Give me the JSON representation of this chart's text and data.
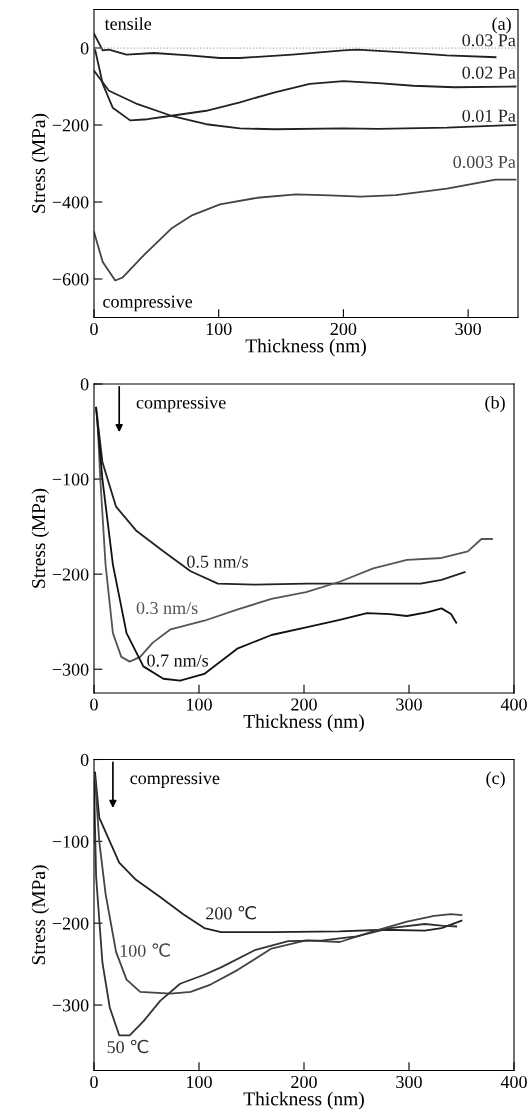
{
  "chart_data": [
    {
      "type": "line",
      "xlabel": "Thickness (nm)",
      "ylabel": "Stress (MPa)",
      "xlim": [
        0,
        340
      ],
      "ylim": [
        -700,
        100
      ],
      "xticks": [
        0,
        100,
        200,
        300
      ],
      "yticks": [
        0,
        {
          "value": -200,
          "label": "−200"
        },
        {
          "value": -400,
          "label": "−400"
        },
        {
          "value": -600,
          "label": "−600"
        }
      ],
      "grid": false,
      "legend": false,
      "line_style": "solid",
      "marker": "none",
      "annotations": [
        "tensile",
        "compressive",
        "(a)"
      ],
      "ref_lines": [
        {
          "axis": "y",
          "value": 0,
          "color": "#aaaaaa",
          "line_style": "dotted"
        }
      ],
      "series": [
        {
          "name": "0.03 Pa",
          "color": "#222222",
          "x": [
            0,
            7,
            12,
            26,
            48,
            76,
            101,
            117,
            159,
            200,
            211,
            242,
            283,
            322
          ],
          "values": [
            37,
            -6,
            -4,
            -17,
            -13,
            -19,
            -26,
            -26,
            -17,
            -6,
            -4,
            -10,
            -19,
            -24
          ]
        },
        {
          "name": "0.02 Pa",
          "color": "#222222",
          "x": [
            1,
            7,
            15,
            29,
            43,
            62,
            90,
            117,
            145,
            173,
            200,
            228,
            256,
            289,
            338
          ],
          "values": [
            -6,
            -93,
            -155,
            -188,
            -185,
            -176,
            -163,
            -141,
            -115,
            -93,
            -86,
            -91,
            -98,
            -102,
            -100
          ]
        },
        {
          "name": "0.01 Pa",
          "color": "#222222",
          "x": [
            0,
            12,
            35,
            62,
            90,
            117,
            145,
            200,
            228,
            283,
            338
          ],
          "values": [
            -59,
            -111,
            -146,
            -176,
            -198,
            -209,
            -211,
            -209,
            -210,
            -207,
            -200
          ]
        },
        {
          "name": "0.003 Pa",
          "color": "#444444",
          "x": [
            0,
            7,
            17,
            23,
            40,
            62,
            79,
            101,
            131,
            162,
            189,
            214,
            242,
            283,
            322,
            338
          ],
          "values": [
            -478,
            -556,
            -604,
            -596,
            -538,
            -469,
            -434,
            -406,
            -389,
            -380,
            -383,
            -386,
            -382,
            -365,
            -342,
            -342
          ]
        }
      ]
    },
    {
      "type": "line",
      "xlabel": "Thickness (nm)",
      "ylabel": "Stress (MPa)",
      "xlim": [
        0,
        400
      ],
      "ylim": [
        -325,
        0
      ],
      "xticks": [
        0,
        100,
        200,
        300,
        400
      ],
      "yticks": [
        0,
        {
          "value": -100,
          "label": "−100"
        },
        {
          "value": -200,
          "label": "−200"
        },
        {
          "value": -300,
          "label": "−300"
        }
      ],
      "grid": false,
      "legend": false,
      "line_style": "solid",
      "marker": "none",
      "annotations": [
        "compressive",
        "(b)"
      ],
      "series": [
        {
          "name": "0.5 nm/s",
          "color": "#222222",
          "x": [
            2,
            8,
            21,
            40,
            66,
            92,
            118,
            153,
            202,
            250,
            311,
            331,
            353
          ],
          "values": [
            -25,
            -82,
            -129,
            -154,
            -176,
            -197,
            -210,
            -211,
            -210,
            -210,
            -210,
            -206,
            -198
          ]
        },
        {
          "name": "0.3 nm/s",
          "color": "#555555",
          "x": [
            3,
            6,
            11,
            18,
            26,
            34,
            44,
            56,
            73,
            105,
            137,
            169,
            202,
            234,
            266,
            298,
            331,
            356,
            369,
            379
          ],
          "values": [
            -32,
            -100,
            -190,
            -262,
            -287,
            -292,
            -287,
            -272,
            -258,
            -249,
            -237,
            -226,
            -219,
            -208,
            -194,
            -185,
            -183,
            -176,
            -163,
            -163
          ]
        },
        {
          "name": "0.7 nm/s",
          "color": "#111111",
          "x": [
            2,
            8,
            18,
            31,
            47,
            66,
            82,
            105,
            137,
            169,
            202,
            234,
            260,
            282,
            298,
            318,
            331,
            340,
            345
          ],
          "values": [
            -25,
            -100,
            -190,
            -262,
            -297,
            -310,
            -312,
            -305,
            -278,
            -264,
            -256,
            -248,
            -241,
            -242,
            -244,
            -240,
            -236,
            -242,
            -251
          ]
        }
      ]
    },
    {
      "type": "line",
      "xlabel": "Thickness (nm)",
      "ylabel": "Stress (MPa)",
      "xlim": [
        0,
        400
      ],
      "ylim": [
        -380,
        0
      ],
      "xticks": [
        0,
        100,
        200,
        300,
        400
      ],
      "yticks": [
        0,
        {
          "value": -100,
          "label": "−100"
        },
        {
          "value": -200,
          "label": "−200"
        },
        {
          "value": -300,
          "label": "−300"
        }
      ],
      "grid": false,
      "legend": false,
      "line_style": "solid",
      "marker": "none",
      "annotations": [
        "compressive",
        "(c)"
      ],
      "series": [
        {
          "name": "200 ℃",
          "color": "#222222",
          "x": [
            1,
            5,
            15,
            24,
            40,
            63,
            85,
            105,
            121,
            169,
            234,
            276,
            315,
            331,
            350
          ],
          "values": [
            -16,
            -71,
            -100,
            -126,
            -147,
            -168,
            -189,
            -206,
            -211,
            -211,
            -210,
            -208,
            -209,
            -206,
            -197
          ]
        },
        {
          "name": "100 ℃",
          "color": "#444444",
          "x": [
            1,
            5,
            11,
            21,
            31,
            44,
            73,
            92,
            111,
            137,
            169,
            202,
            234,
            266,
            298,
            324,
            340,
            350
          ],
          "values": [
            -24,
            -100,
            -164,
            -235,
            -269,
            -284,
            -286,
            -284,
            -275,
            -257,
            -231,
            -221,
            -223,
            -210,
            -198,
            -191,
            -189,
            -190
          ]
        },
        {
          "name": "50 ℃",
          "color": "#333333",
          "x": [
            0,
            2,
            8,
            15,
            24,
            34,
            47,
            63,
            82,
            105,
            121,
            153,
            185,
            218,
            250,
            282,
            315,
            331,
            345
          ],
          "values": [
            -24,
            -143,
            -248,
            -303,
            -337,
            -337,
            -320,
            -295,
            -274,
            -263,
            -254,
            -233,
            -222,
            -221,
            -216,
            -206,
            -201,
            -203,
            -204
          ]
        }
      ]
    }
  ]
}
